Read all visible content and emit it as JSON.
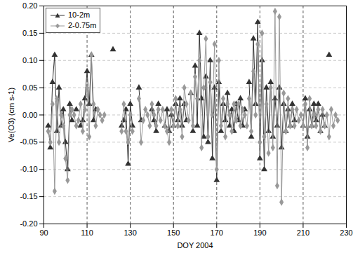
{
  "chart_data": {
    "type": "line",
    "x_label": "DOY 2004",
    "y_label": "Ve(O3) (cm s-1)",
    "xlim": [
      90,
      230
    ],
    "xticks": [
      90,
      110,
      130,
      150,
      170,
      190,
      210,
      230
    ],
    "ylim": [
      -0.2,
      0.2
    ],
    "yticks": [
      {
        "value": -0.2,
        "label": "-0.20"
      },
      {
        "value": -0.15,
        "label": "-0.15"
      },
      {
        "value": -0.1,
        "label": "-0.10"
      },
      {
        "value": -0.05,
        "label": "-0.05"
      },
      {
        "value": 0,
        "label": "0.00"
      },
      {
        "value": 0.05,
        "label": "0.05"
      },
      {
        "value": 0.1,
        "label": "0.10"
      },
      {
        "value": 0.15,
        "label": "0.15"
      },
      {
        "value": 0.2,
        "label": "0.20"
      }
    ],
    "grid": true,
    "legend": "top-left",
    "x": [
      92,
      93,
      94,
      95,
      96,
      97,
      98,
      99,
      100,
      101,
      102,
      103,
      104,
      105,
      106,
      107,
      108,
      109,
      110,
      111,
      112,
      113,
      114,
      115,
      116,
      117,
      118,
      119,
      120,
      121,
      122,
      123,
      124,
      125,
      126,
      127,
      128,
      129,
      130,
      131,
      132,
      133,
      134,
      135,
      136,
      137,
      138,
      139,
      140,
      141,
      142,
      143,
      144,
      145,
      146,
      147,
      148,
      149,
      150,
      151,
      152,
      153,
      154,
      155,
      156,
      157,
      158,
      159,
      160,
      161,
      162,
      163,
      164,
      165,
      166,
      167,
      168,
      169,
      170,
      171,
      172,
      173,
      174,
      175,
      176,
      177,
      178,
      179,
      180,
      181,
      182,
      183,
      184,
      185,
      186,
      187,
      188,
      189,
      190,
      191,
      192,
      193,
      194,
      195,
      196,
      197,
      198,
      199,
      200,
      201,
      202,
      203,
      204,
      205,
      206,
      207,
      208,
      209,
      210,
      211,
      212,
      213,
      214,
      215,
      216,
      217,
      218,
      219,
      220,
      221,
      222,
      223,
      224,
      225,
      226
    ],
    "series": [
      {
        "name": "10-2m",
        "color": "#333333",
        "marker": "triangle",
        "line_style": "solid",
        "values": [
          -0.02,
          -0.06,
          0.06,
          0.11,
          -0.03,
          0.05,
          -0.02,
          0.01,
          -0.05,
          -0.1,
          0.02,
          -0.01,
          null,
          0.01,
          null,
          -0.02,
          -0.01,
          0.03,
          0.08,
          0.02,
          0.11,
          -0.01,
          0.01,
          null,
          null,
          null,
          null,
          null,
          null,
          null,
          0.12,
          null,
          null,
          null,
          -0.02,
          -0.01,
          0.01,
          -0.09,
          0.02,
          -0.02,
          null,
          null,
          0.05,
          -0.01,
          null,
          null,
          null,
          null,
          0.01,
          -0.01,
          -0.03,
          0.02,
          null,
          null,
          -0.02,
          0.01,
          -0.03,
          0.0,
          -0.02,
          0.02,
          -0.01,
          0.03,
          -0.02,
          0.02,
          -0.01,
          null,
          0.04,
          -0.03,
          0.09,
          -0.02,
          0.15,
          0.03,
          -0.04,
          0.07,
          -0.05,
          0.1,
          -0.08,
          0.05,
          -0.12,
          0.06,
          -0.03,
          0.02,
          -0.01,
          0.04,
          -0.02,
          0.01,
          -0.03,
          0.02,
          -0.01,
          0.03,
          -0.02,
          0.01,
          null,
          0.06,
          -0.04,
          0.14,
          0.02,
          0.17,
          -0.08,
          0.1,
          -0.1,
          0.05,
          -0.03,
          0.06,
          -0.04,
          0.03,
          -0.02,
          0.05,
          -0.06,
          0.02,
          -0.03,
          0.01,
          -0.02,
          0.02,
          -0.01,
          null,
          null,
          null,
          -0.02,
          0.03,
          -0.04,
          0.01,
          -0.02,
          0.02,
          -0.01,
          0.02,
          -0.03,
          0.0,
          -0.02,
          null,
          0.11,
          null,
          null,
          null,
          null
        ]
      },
      {
        "name": "2-0.75m",
        "color": "#999999",
        "marker": "diamond",
        "line_style": "solid",
        "values": [
          -0.03,
          -0.05,
          0.02,
          -0.14,
          0.03,
          -0.05,
          0.0,
          -0.02,
          -0.08,
          -0.12,
          0.0,
          0.01,
          0.0,
          -0.02,
          -0.01,
          0.02,
          -0.03,
          0.01,
          0.05,
          -0.04,
          0.11,
          0.02,
          -0.02,
          0.01,
          0.0,
          -0.01,
          0.0,
          null,
          null,
          null,
          null,
          null,
          null,
          null,
          -0.03,
          0.02,
          -0.03,
          -0.05,
          0.0,
          -0.03,
          null,
          null,
          0.03,
          -0.05,
          -0.01,
          0.01,
          0.0,
          -0.02,
          0.02,
          0.0,
          -0.02,
          0.01,
          -0.01,
          0.01,
          -0.02,
          -0.03,
          -0.05,
          0.01,
          -0.02,
          0.03,
          -0.02,
          0.01,
          -0.04,
          0.05,
          0.02,
          -0.01,
          0.04,
          -0.02,
          0.07,
          0.03,
          0.1,
          -0.06,
          0.05,
          0.14,
          -0.04,
          0.06,
          0.0,
          0.13,
          -0.1,
          0.1,
          -0.02,
          0.03,
          -0.04,
          0.02,
          0.0,
          -0.03,
          0.02,
          -0.01,
          0.02,
          -0.02,
          0.01,
          0.0,
          -0.02,
          0.03,
          -0.03,
          0.08,
          0.0,
          0.13,
          -0.05,
          0.15,
          -0.04,
          0.02,
          -0.07,
          0.05,
          -0.06,
          0.19,
          -0.13,
          0.18,
          -0.16,
          0.04,
          -0.03,
          0.03,
          -0.02,
          0.01,
          -0.02,
          0.01,
          -0.01,
          0.0,
          -0.02,
          0.02,
          -0.06,
          0.03,
          -0.02,
          0.0,
          -0.02,
          0.01,
          -0.03,
          0.01,
          -0.02,
          0.0,
          -0.04,
          0.01,
          -0.02,
          0.0,
          -0.01
        ]
      }
    ]
  }
}
